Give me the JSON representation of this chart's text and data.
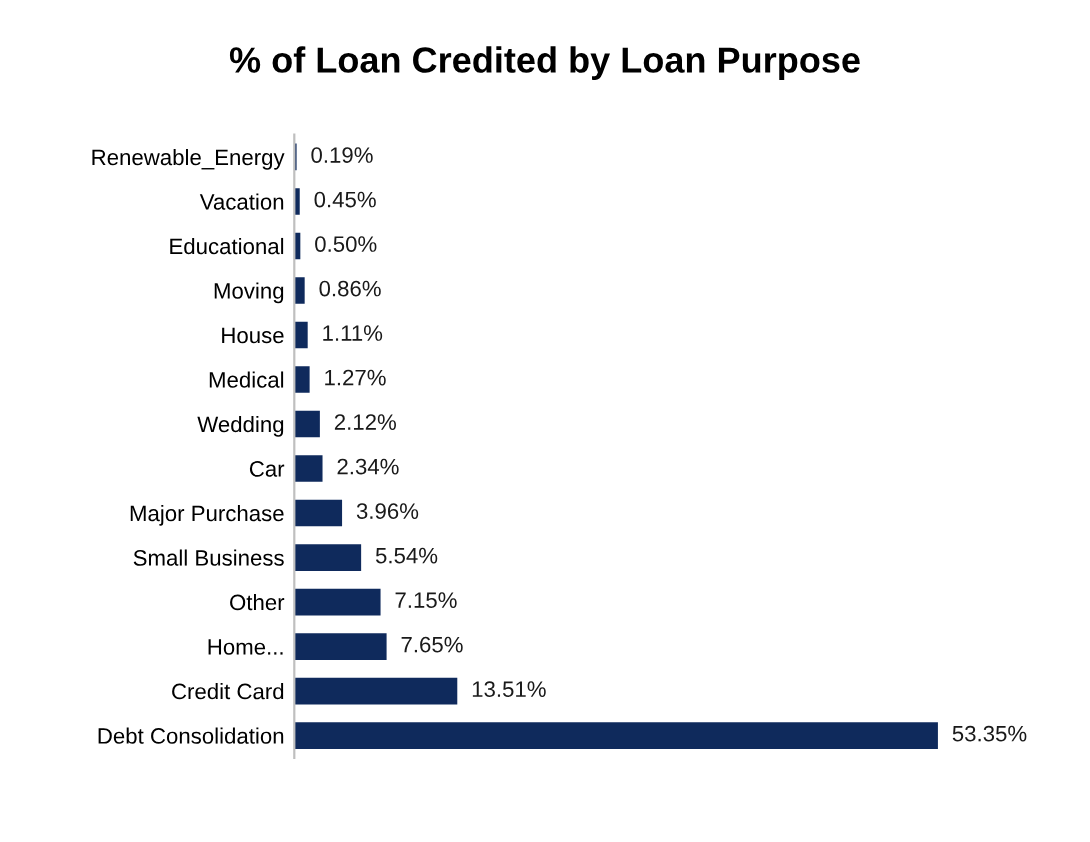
{
  "chart_data": {
    "type": "bar",
    "orientation": "horizontal",
    "title": "% of Loan Credited by Loan Purpose",
    "categories": [
      "Renewable_Energy",
      "Vacation",
      "Educational",
      "Moving",
      "House",
      "Medical",
      "Wedding",
      "Car",
      "Major Purchase",
      "Small Business",
      "Other",
      "Home...",
      "Credit Card",
      "Debt Consolidation"
    ],
    "values": [
      0.19,
      0.45,
      0.5,
      0.86,
      1.11,
      1.27,
      2.12,
      2.34,
      3.96,
      5.54,
      7.15,
      7.65,
      13.51,
      53.35
    ],
    "value_labels": [
      "0.19%",
      "0.45%",
      "0.50%",
      "0.86%",
      "1.11%",
      "1.27%",
      "2.12%",
      "2.34%",
      "3.96%",
      "5.54%",
      "7.15%",
      "7.65%",
      "13.51%",
      "53.35%"
    ],
    "color": "#0f2a5c",
    "grid": false,
    "legend": false
  }
}
